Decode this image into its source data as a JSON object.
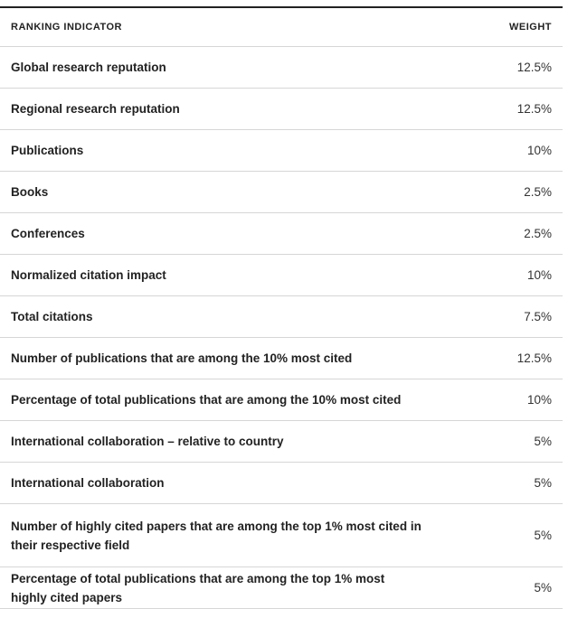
{
  "table": {
    "headers": {
      "indicator": "RANKING INDICATOR",
      "weight": "WEIGHT"
    },
    "rows": [
      {
        "indicator": "Global research reputation",
        "weight": "12.5%"
      },
      {
        "indicator": "Regional research reputation",
        "weight": "12.5%"
      },
      {
        "indicator": "Publications",
        "weight": "10%"
      },
      {
        "indicator": "Books",
        "weight": "2.5%"
      },
      {
        "indicator": "Conferences",
        "weight": "2.5%"
      },
      {
        "indicator": "Normalized citation impact",
        "weight": "10%"
      },
      {
        "indicator": "Total citations",
        "weight": "7.5%"
      },
      {
        "indicator": "Number of publications that are among the 10% most cited",
        "weight": "12.5%"
      },
      {
        "indicator": "Percentage of total publications that are among the 10% most cited",
        "weight": "10%"
      },
      {
        "indicator": "International collaboration – relative to country",
        "weight": "5%"
      },
      {
        "indicator": "International collaboration",
        "weight": "5%"
      },
      {
        "indicator": "Number of highly cited papers that are among the top 1% most cited in their respective field",
        "weight": "5%"
      },
      {
        "indicator": "Percentage of total publications that are among the top 1% most highly cited papers",
        "weight": "5%"
      }
    ]
  }
}
